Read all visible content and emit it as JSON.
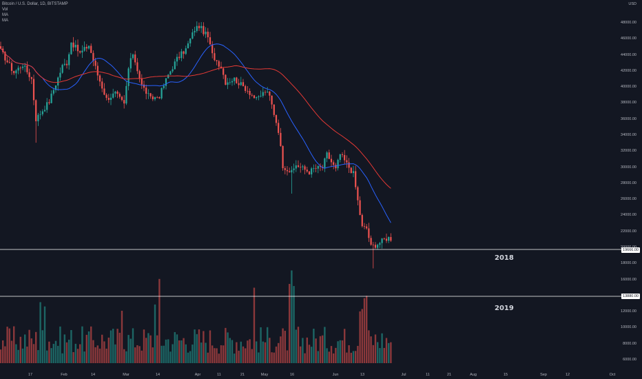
{
  "header": {
    "title": "Bitcoin / U.S. Dollar, 1D, BITSTAMP",
    "indicators": [
      "Vol",
      "MA",
      "MA"
    ]
  },
  "price_scale": {
    "currency": "USD",
    "ticks": [
      "48000.00",
      "46000.00",
      "44000.00",
      "42000.00",
      "40000.00",
      "38000.00",
      "36000.00",
      "34000.00",
      "32000.00",
      "30000.00",
      "28000.00",
      "26000.00",
      "24000.00",
      "22000.00",
      "20000.00",
      "18000.00",
      "16000.00",
      "14000.00",
      "12000.00",
      "10000.00",
      "8000.00",
      "6000.00"
    ]
  },
  "time_axis": {
    "labels": [
      "17",
      "Feb",
      "14",
      "Mar",
      "14",
      "Apr",
      "11",
      "21",
      "May",
      "16",
      "Jun",
      "13",
      "Jul",
      "11",
      "21",
      "Aug",
      "15",
      "Sep",
      "12",
      "Oct"
    ]
  },
  "levels": [
    {
      "price_label": "19666.00",
      "note": "2018"
    },
    {
      "price_label": "13880.00",
      "note": "2019"
    }
  ],
  "colors": {
    "up": "#26a69a",
    "down": "#ef5350",
    "ma_fast": "#2962ff",
    "ma_slow": "#e53935",
    "level": "#ffffff"
  },
  "chart_data": {
    "type": "candlestick",
    "symbol": "BTC/USD",
    "interval": "1D",
    "exchange": "BITSTAMP",
    "ylim": [
      5000,
      49500
    ],
    "scale": "linear",
    "grid": false,
    "horizontal_lines": [
      19666,
      13880
    ],
    "series": [
      {
        "name": "Vol"
      },
      {
        "name": "MA"
      },
      {
        "name": "MA"
      }
    ]
  }
}
